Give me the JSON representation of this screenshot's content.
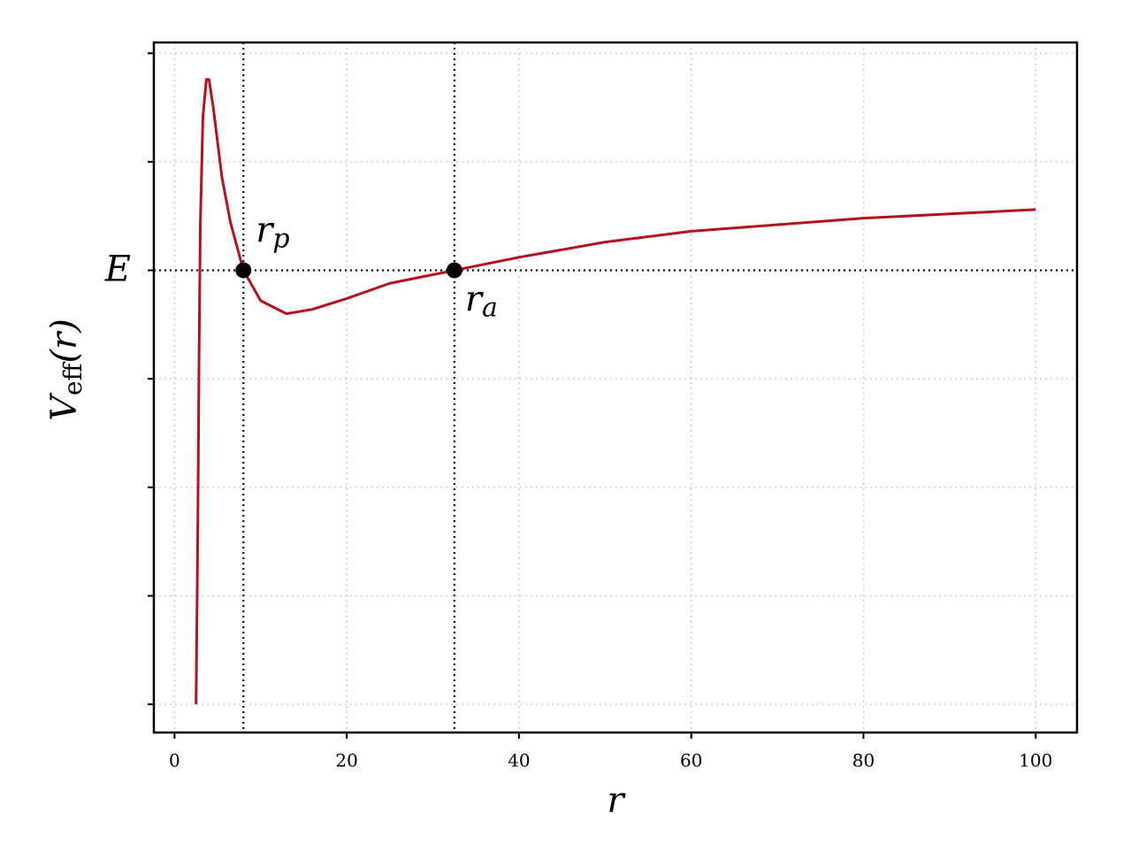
{
  "chart_data": {
    "type": "line",
    "x_label": "r",
    "y_label": {
      "main": "V",
      "subscript": "eff",
      "rest": "(r)"
    },
    "x": [
      2.5,
      2.6,
      2.7,
      2.85,
      3.0,
      3.3,
      3.7,
      4.0,
      4.5,
      5.5,
      6.5,
      8,
      10,
      13,
      16,
      20,
      25,
      32.5,
      40,
      50,
      60,
      70,
      80,
      90,
      100
    ],
    "series": [
      {
        "color": "#b5121b",
        "values": [
          0.75,
          0.789,
          0.83,
          0.911,
          0.972,
          1.021,
          1.038,
          1.038,
          1.025,
          0.993,
          0.972,
          0.95,
          0.936,
          0.93,
          0.932,
          0.937,
          0.944,
          0.95,
          0.956,
          0.963,
          0.968,
          0.971,
          0.974,
          0.976,
          0.978
        ]
      }
    ],
    "energy": 0.95,
    "turning_points": [
      {
        "x": 8,
        "name": "r",
        "subscript": "p"
      },
      {
        "x": 32.5,
        "name": "r",
        "subscript": "a"
      }
    ],
    "xlim": [
      -2.4,
      104.8
    ],
    "ylim": [
      0.737,
      1.055
    ],
    "xticks": [
      0,
      20,
      40,
      60,
      80,
      100
    ],
    "yticks": [
      {
        "value": 0.75,
        "label": null
      },
      {
        "value": 0.8,
        "label": null
      },
      {
        "value": 0.85,
        "label": null
      },
      {
        "value": 0.9,
        "label": null
      },
      {
        "value": 0.95,
        "label": "E"
      },
      {
        "value": 1.0,
        "label": null
      },
      {
        "value": 1.05,
        "label": null
      }
    ],
    "grid": true
  }
}
